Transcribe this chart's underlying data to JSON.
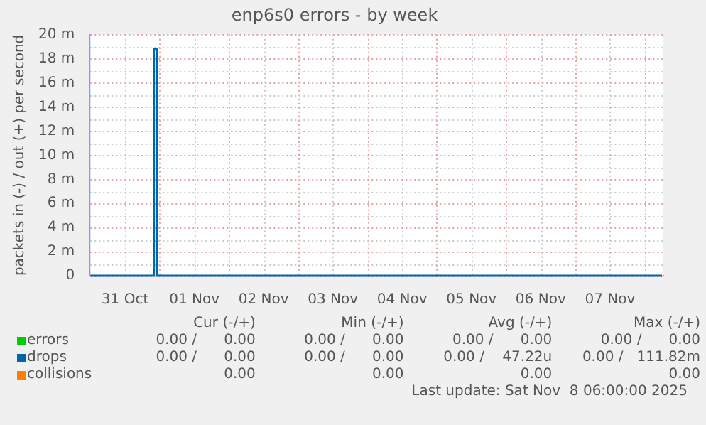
{
  "chart_data": {
    "type": "line",
    "title": "enp6s0 errors - by week",
    "ylabel": "packets in (-) / out (+) per second",
    "xlim": [
      "2025-10-31T00:00",
      "2025-11-08T06:30"
    ],
    "xticks": [
      {
        "value": "2025-10-31T12:00",
        "label": "31 Oct"
      },
      {
        "value": "2025-11-01T00:00",
        "label": null
      },
      {
        "value": "2025-11-01T12:00",
        "label": "01 Nov"
      },
      {
        "value": "2025-11-02T00:00",
        "label": null
      },
      {
        "value": "2025-11-02T12:00",
        "label": "02 Nov"
      },
      {
        "value": "2025-11-03T00:00",
        "label": null
      },
      {
        "value": "2025-11-03T12:00",
        "label": "03 Nov"
      },
      {
        "value": "2025-11-04T00:00",
        "label": null
      },
      {
        "value": "2025-11-04T12:00",
        "label": "04 Nov"
      },
      {
        "value": "2025-11-05T00:00",
        "label": null
      },
      {
        "value": "2025-11-05T12:00",
        "label": "05 Nov"
      },
      {
        "value": "2025-11-06T00:00",
        "label": null
      },
      {
        "value": "2025-11-06T12:00",
        "label": "06 Nov"
      },
      {
        "value": "2025-11-07T00:00",
        "label": null
      },
      {
        "value": "2025-11-07T12:00",
        "label": "07 Nov"
      },
      {
        "value": "2025-11-08T00:00",
        "label": null
      }
    ],
    "ylim": [
      0,
      20
    ],
    "yticks": [
      0,
      {
        "value": 1,
        "label": null
      },
      {
        "value": 2,
        "label": "2 m"
      },
      {
        "value": 3,
        "label": null
      },
      {
        "value": 4,
        "label": "4 m"
      },
      {
        "value": 5,
        "label": null
      },
      {
        "value": 6,
        "label": "6 m"
      },
      {
        "value": 7,
        "label": null
      },
      {
        "value": 8,
        "label": "8 m"
      },
      {
        "value": 9,
        "label": null
      },
      {
        "value": 10,
        "label": "10 m"
      },
      {
        "value": 11,
        "label": null
      },
      {
        "value": 12,
        "label": "12 m"
      },
      {
        "value": 13,
        "label": null
      },
      {
        "value": 14,
        "label": "14 m"
      },
      {
        "value": 15,
        "label": null
      },
      {
        "value": 16,
        "label": "16 m"
      },
      {
        "value": 17,
        "label": null
      },
      {
        "value": 18,
        "label": "18 m"
      },
      {
        "value": 19,
        "label": null
      },
      {
        "value": 20,
        "label": "20 m"
      }
    ],
    "grid": true,
    "legend": "bottom left",
    "marker": "none",
    "line_style": "solid",
    "series": [
      {
        "name": "errors",
        "color": "#00cc00"
      },
      {
        "name": "drops",
        "color": "#0066b3",
        "x": [
          "2025-10-31T00:00",
          "2025-10-31T22:00",
          "2025-10-31T22:00",
          "2025-10-31T23:00",
          "2025-10-31T23:00",
          "2025-11-08T06:00"
        ],
        "values": [
          0,
          0,
          18.8,
          18.8,
          0,
          0
        ]
      },
      {
        "name": "collisions",
        "color": "#ff8000"
      }
    ],
    "annotations": [
      "Cur (-/+)",
      "Min (-/+)",
      "Avg (-/+)",
      "Max (-/+)",
      "0.00 /      0.00",
      "0.00 /      0.00",
      "0.00 /      0.00",
      "0.00 /      0.00",
      "0.00 /      0.00",
      "0.00 /      0.00",
      "0.00 /    47.22u",
      "0.00 /   111.82m",
      "0.00",
      "0.00",
      "0.00",
      "0.00",
      "Last update: Sat Nov  8 06:00:00 2025"
    ]
  }
}
